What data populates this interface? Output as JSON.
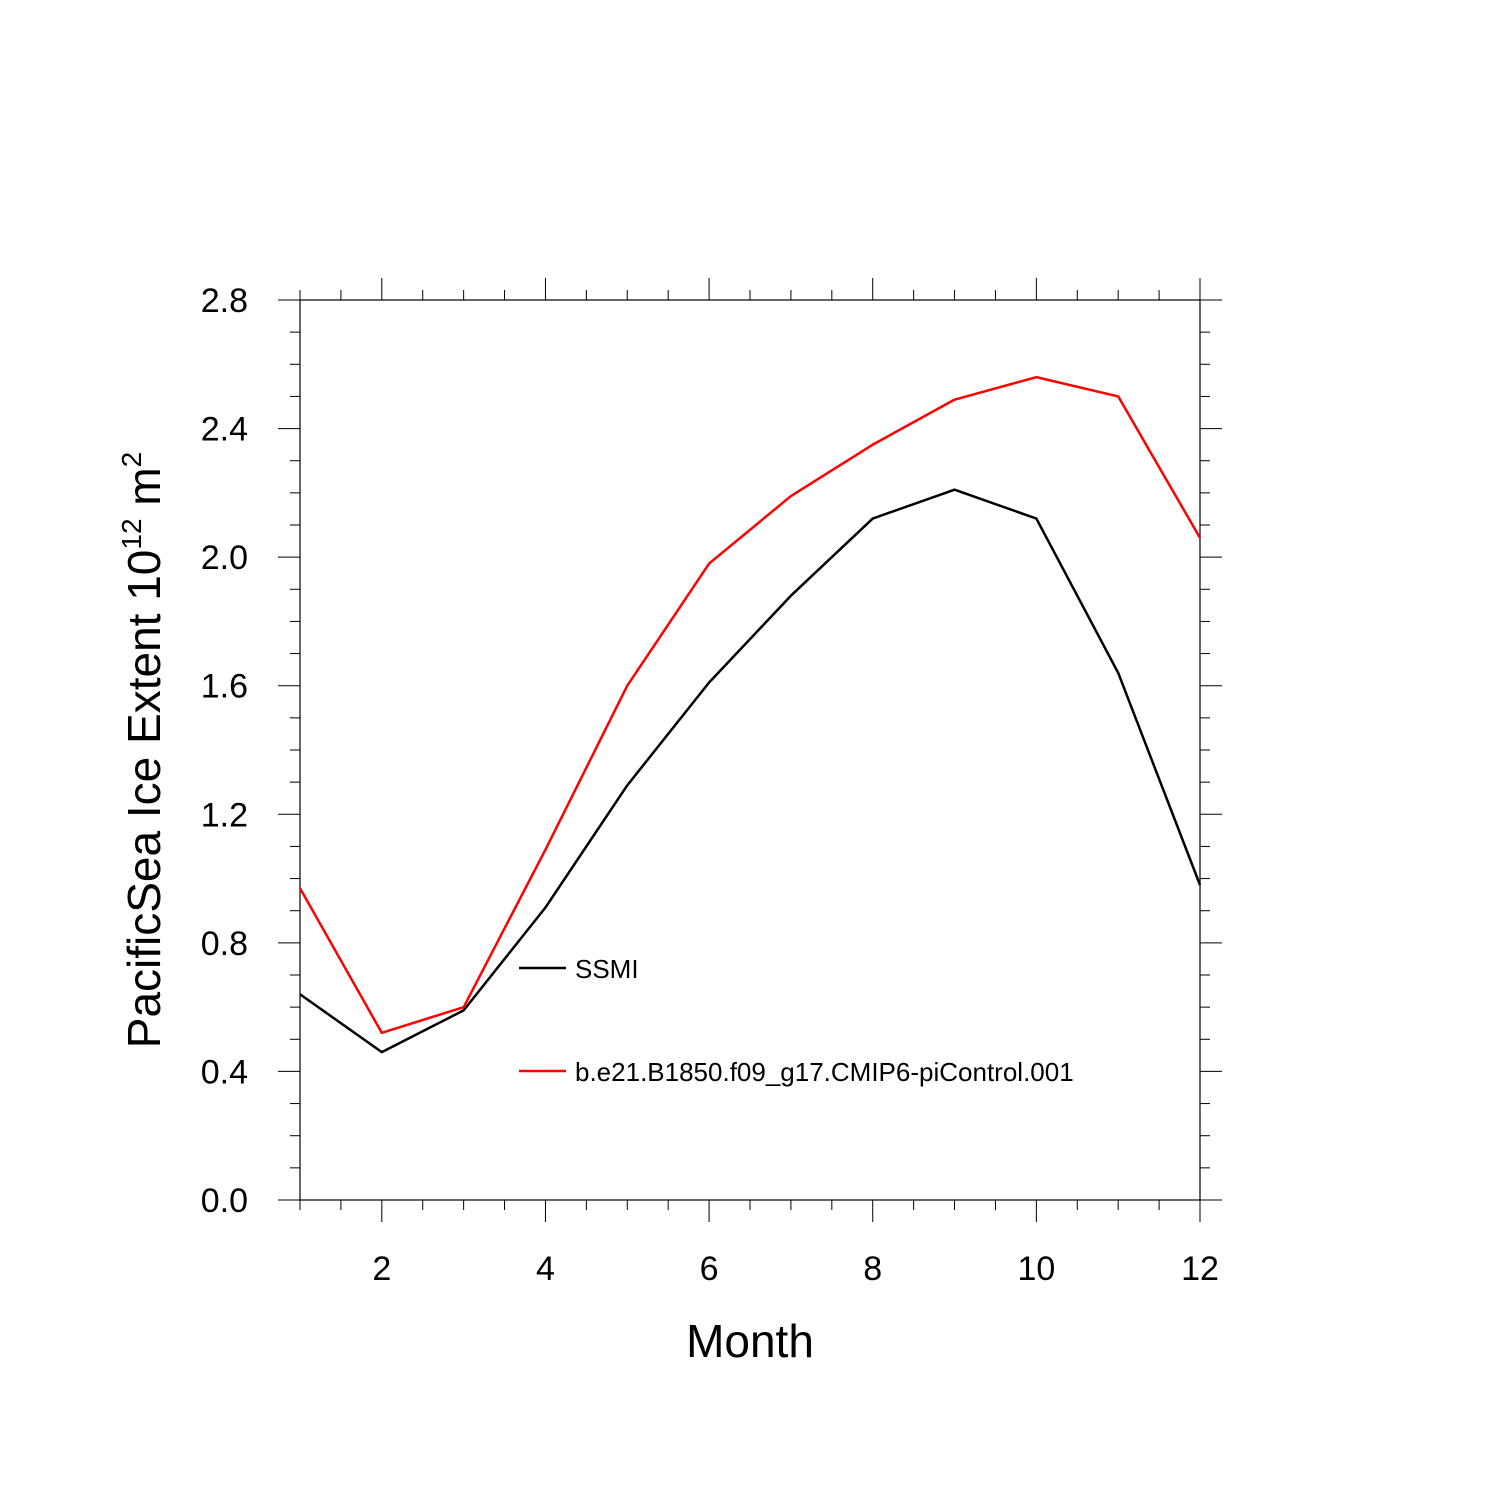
{
  "chart_data": {
    "type": "line",
    "title": "",
    "xlabel": "Month",
    "ylabel": {
      "main": "PacificSea Ice Extent 10",
      "superscript": "12",
      "unit": " m",
      "unit_superscript": "2"
    },
    "xlim": [
      1,
      12
    ],
    "ylim": [
      0.0,
      2.8
    ],
    "xticks": [
      2,
      4,
      6,
      8,
      10,
      12
    ],
    "xtick_labels": [
      "2",
      "4",
      "6",
      "8",
      "10",
      "12"
    ],
    "yticks": [
      0.0,
      0.4,
      0.8,
      1.2,
      1.6,
      2.0,
      2.4,
      2.8
    ],
    "ytick_labels": [
      "0.0",
      "0.4",
      "0.8",
      "1.2",
      "1.6",
      "2.0",
      "2.4",
      "2.8"
    ],
    "x": [
      1,
      2,
      3,
      4,
      5,
      6,
      7,
      8,
      9,
      10,
      11,
      12
    ],
    "series": [
      {
        "name": "SSMI",
        "color": "#000000",
        "values": [
          0.64,
          0.46,
          0.59,
          0.91,
          1.29,
          1.61,
          1.88,
          2.12,
          2.21,
          2.12,
          1.64,
          0.98
        ]
      },
      {
        "name": "b.e21.B1850.f09_g17.CMIP6-piControl.001",
        "color": "#ff0000",
        "values": [
          0.97,
          0.52,
          0.6,
          1.09,
          1.6,
          1.98,
          2.19,
          2.35,
          2.49,
          2.56,
          2.5,
          2.06
        ]
      }
    ],
    "legend": "inside-lower-center",
    "grid": false
  }
}
